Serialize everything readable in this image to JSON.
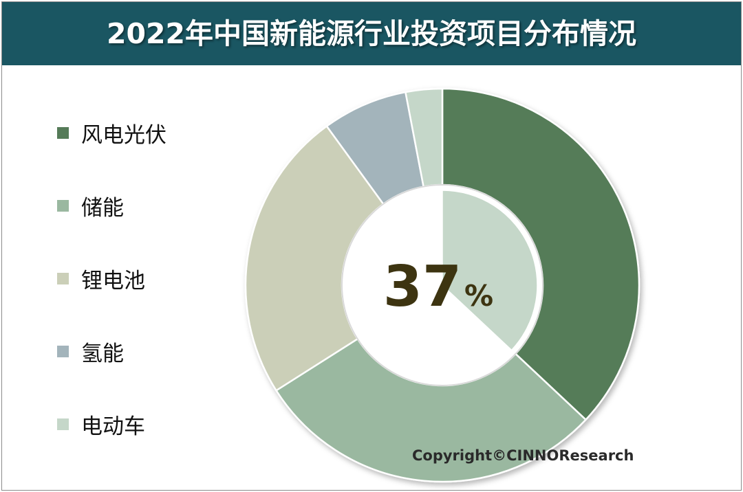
{
  "title": "2022年中国新能源行业投资项目分布情况",
  "center_label": {
    "value": "37",
    "unit": "%"
  },
  "copyright": "Copyright©CINNOResearch",
  "chart_data": {
    "type": "pie",
    "title": "2022年中国新能源行业投资项目分布情况",
    "style": "donut",
    "legend_position": "left",
    "categories": [
      "风电光伏",
      "储能",
      "锂电池",
      "氢能",
      "电动车"
    ],
    "values": [
      37,
      29,
      24,
      7,
      3
    ],
    "colors": [
      "#557b58",
      "#9ab8a0",
      "#cbcfb8",
      "#a3b4bb",
      "#c5d7c9"
    ],
    "inner_ring": {
      "category": "风电光伏",
      "value": 37,
      "color": "#c5d7c9"
    }
  }
}
